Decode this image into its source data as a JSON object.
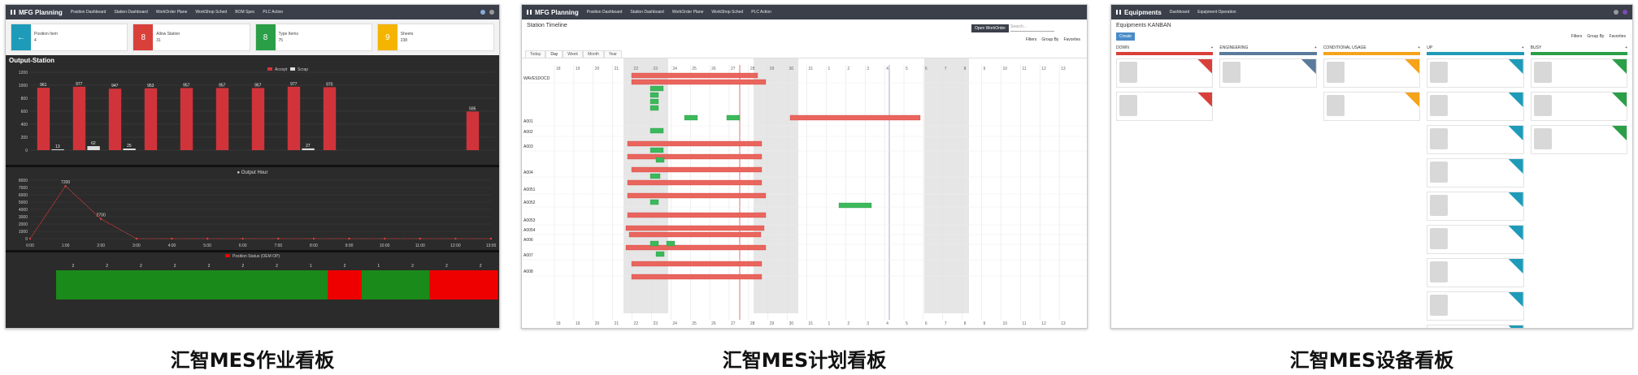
{
  "panel1": {
    "brand": "MFG Planning",
    "nav": [
      "Position Dashboard",
      "Station Dashboard",
      "WorkOrder Plane",
      "WorkShop Sched",
      "BOM Spec",
      "PLC Action"
    ],
    "kpis": [
      {
        "icon": "←",
        "label": "Position Item",
        "value": "4",
        "color": "#1e9bb8"
      },
      {
        "icon": "8",
        "label": "Allow Station",
        "value": "31",
        "color": "#d9403a"
      },
      {
        "icon": "8",
        "label": "Type Items",
        "value": "75",
        "color": "#2b9f47"
      },
      {
        "icon": "9",
        "label": "Sheets",
        "value": "238",
        "color": "#f4b400"
      }
    ],
    "section_title": "Output-Station",
    "legend": [
      "Accept",
      "Scrap"
    ],
    "line_title": "Output Hour",
    "status_title": "Position Status (OEM OP)"
  },
  "panel2": {
    "brand": "MFG Planning",
    "nav": [
      "Position Dashboard",
      "Station Dashboard",
      "WorkOrder Plane",
      "WorkShop Sched",
      "PLC Action"
    ],
    "title": "Station Timeline",
    "btn_dark": "Open WorkOrder",
    "search_placeholder": "Search...",
    "filters": [
      "Filters",
      "Group By",
      "Favorites"
    ],
    "tabs": [
      "Today",
      "Day",
      "Week",
      "Month",
      "Year"
    ],
    "rows": [
      "WAVESDOCD",
      "A001",
      "A002",
      "A003",
      "A004",
      "A0051",
      "A0052",
      "A0053",
      "A0054",
      "A006",
      "A007",
      "A008"
    ]
  },
  "panel3": {
    "brand": "Equipments",
    "nav": [
      "Dashboard",
      "Equipment Operation"
    ],
    "title": "Equipments KANBAN",
    "new_btn": "Create",
    "filters": [
      "Filters",
      "Group By",
      "Favorites"
    ],
    "columns": [
      {
        "name": "DOWN",
        "color": "#d9403a",
        "cards": 2
      },
      {
        "name": "ENGINEERING",
        "color": "#5b7b9a",
        "cards": 1
      },
      {
        "name": "CONDITIONAL USAGE",
        "color": "#f4a31a",
        "cards": 2
      },
      {
        "name": "UP",
        "color": "#1e9bb8",
        "cards": 9
      },
      {
        "name": "BUSY",
        "color": "#2b9f47",
        "cards": 3
      }
    ]
  },
  "captions": [
    "汇智MES作业看板",
    "汇智MES计划看板",
    "汇智MES设备看板"
  ],
  "chart_data": [
    {
      "type": "bar",
      "title": "Output-Station",
      "series": [
        {
          "name": "Accept",
          "values": [
            961,
            977,
            947,
            953,
            957,
            957,
            957,
            977,
            970,
            0,
            0,
            0,
            595
          ]
        },
        {
          "name": "Scrap",
          "values": [
            13,
            62,
            25,
            0,
            0,
            0,
            0,
            27,
            0,
            0,
            0,
            0,
            0
          ]
        }
      ],
      "ylim": [
        0,
        1200
      ]
    },
    {
      "type": "line",
      "title": "Output Hour",
      "x": [
        "0:00",
        "1:00",
        "2:00",
        "3:00",
        "4:00",
        "5:00",
        "6:00",
        "7:00",
        "8:00",
        "9:00",
        "10:00",
        "11:00",
        "12:00",
        "13:00"
      ],
      "series": [
        {
          "name": "Output",
          "values": [
            0,
            7200,
            2700,
            0,
            0,
            0,
            0,
            0,
            0,
            0,
            0,
            0,
            0,
            0
          ]
        }
      ],
      "ylim": [
        0,
        8000
      ]
    }
  ]
}
